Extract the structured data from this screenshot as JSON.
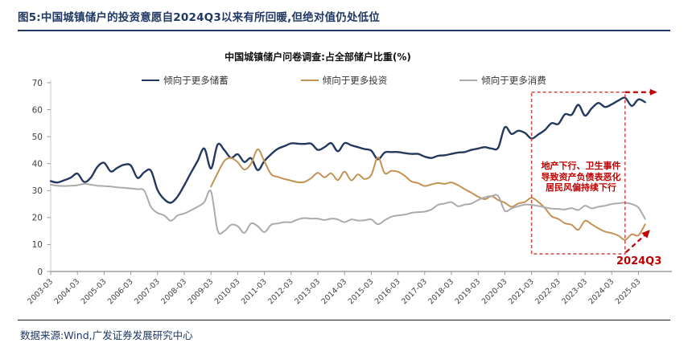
{
  "header": {
    "title": "图5:中国城镇储户的投资意愿自2024Q3以来有所回暖,但绝对值仍处低位"
  },
  "chart_data": {
    "type": "line",
    "title": "中国城镇储户问卷调查:占全部储户比重(%)",
    "frequency": "quarterly",
    "x_start": "2003-03",
    "x_end": "2025-06",
    "x_tick_labels": [
      "2003-03",
      "2004-03",
      "2005-03",
      "2006-03",
      "2007-03",
      "2008-03",
      "2009-03",
      "2010-03",
      "2011-03",
      "2012-03",
      "2013-03",
      "2014-03",
      "2015-03",
      "2016-03",
      "2017-03",
      "2018-03",
      "2019-03",
      "2020-03",
      "2021-03",
      "2022-03",
      "2023-03",
      "2024-03",
      "2025-03"
    ],
    "ylim": [
      0,
      70
    ],
    "y_ticks": [
      0,
      10,
      20,
      30,
      40,
      50,
      60,
      70
    ],
    "grid": false,
    "legend_position": "top",
    "series": [
      {
        "name": "倾向于更多储蓄",
        "color": "#24395e",
        "values": [
          33.5,
          33.0,
          33.8,
          34.8,
          36.3,
          33.2,
          34.8,
          38.8,
          40.3,
          37.1,
          38.5,
          39.6,
          39.3,
          34.7,
          36.8,
          37.4,
          30.2,
          26.8,
          25.5,
          27.8,
          32.0,
          36.6,
          41.0,
          45.6,
          38.2,
          47.1,
          45.0,
          42.1,
          43.5,
          40.6,
          42.0,
          37.6,
          41.0,
          43.5,
          45.5,
          46.5,
          47.5,
          47.4,
          47.3,
          47.4,
          45.1,
          46.1,
          47.6,
          44.6,
          47.6,
          46.8,
          46.1,
          45.4,
          44.8,
          41.6,
          44.1,
          44.3,
          44.3,
          43.9,
          43.6,
          43.6,
          42.6,
          42.1,
          42.9,
          43.1,
          43.6,
          44.1,
          44.3,
          45.1,
          45.6,
          46.1,
          45.6,
          45.9,
          53.5,
          51.0,
          52.2,
          51.4,
          49.3,
          50.8,
          52.5,
          55.0,
          54.7,
          58.3,
          58.1,
          61.8,
          57.8,
          60.5,
          62.5,
          61.0,
          62.0,
          63.4,
          64.4,
          61.4,
          63.8,
          62.8
        ]
      },
      {
        "name": "倾向于更多投资",
        "color": "#c49254",
        "values": [
          null,
          null,
          null,
          null,
          null,
          null,
          null,
          null,
          null,
          null,
          null,
          null,
          null,
          null,
          null,
          null,
          null,
          null,
          null,
          null,
          null,
          null,
          null,
          null,
          31.5,
          36.5,
          41.0,
          42.1,
          40.5,
          37.8,
          40.0,
          45.3,
          40.8,
          36.1,
          35.1,
          34.3,
          33.7,
          33.1,
          33.2,
          34.6,
          36.6,
          34.9,
          36.4,
          33.9,
          37.0,
          33.8,
          36.0,
          34.3,
          35.8,
          42.3,
          36.5,
          37.3,
          37.0,
          35.5,
          33.4,
          32.8,
          31.7,
          32.3,
          32.8,
          32.5,
          33.0,
          32.0,
          30.5,
          29.2,
          27.7,
          26.8,
          27.9,
          26.5,
          25.5,
          24.0,
          25.2,
          25.8,
          27.3,
          25.8,
          23.5,
          20.5,
          19.5,
          17.9,
          17.3,
          15.5,
          18.8,
          17.5,
          16.0,
          14.8,
          14.2,
          13.3,
          11.7,
          13.8,
          13.4,
          17.5
        ]
      },
      {
        "name": "倾向于更多消费",
        "color": "#ababab",
        "values": [
          32.2,
          31.8,
          31.7,
          31.8,
          32.0,
          32.5,
          32.2,
          31.8,
          31.7,
          31.5,
          31.2,
          31.0,
          30.8,
          30.5,
          30.0,
          24.0,
          21.7,
          20.8,
          18.8,
          20.8,
          21.5,
          22.7,
          24.0,
          25.7,
          29.7,
          15.2,
          15.0,
          17.3,
          16.8,
          14.3,
          17.8,
          16.8,
          14.6,
          17.3,
          17.8,
          18.3,
          18.3,
          19.3,
          19.8,
          19.6,
          19.6,
          19.1,
          19.6,
          19.3,
          18.3,
          19.3,
          18.9,
          19.0,
          19.3,
          17.5,
          19.0,
          20.3,
          20.8,
          21.1,
          21.7,
          22.0,
          22.2,
          23.0,
          24.7,
          25.2,
          25.7,
          24.2,
          24.8,
          25.2,
          26.5,
          27.5,
          28.0,
          28.0,
          22.5,
          23.4,
          24.2,
          24.8,
          24.7,
          24.3,
          23.8,
          23.3,
          23.2,
          23.0,
          23.5,
          22.8,
          24.4,
          23.4,
          24.0,
          24.4,
          25.0,
          25.3,
          25.5,
          25.0,
          23.7,
          19.5
        ]
      }
    ],
    "annotations": {
      "box_note": {
        "lines": [
          "地产下行、卫生事件",
          "导致资产负债表恶化",
          "居民风偏持续下行"
        ],
        "color": "#c00000"
      },
      "box_range": {
        "x_from": "2021-03",
        "x_to": "2024-09",
        "y_from": 6.5,
        "y_to": 66.5
      },
      "label": "2024Q3"
    }
  },
  "colors": {
    "title_navy": "#1f3864",
    "annotation_red": "#c00000",
    "box_red": "#cc4444",
    "axis_gray": "#b7b7b7",
    "tick_text": "#404040"
  },
  "footer": {
    "source": "数据来源:Wind,广发证券发展研究中心"
  }
}
